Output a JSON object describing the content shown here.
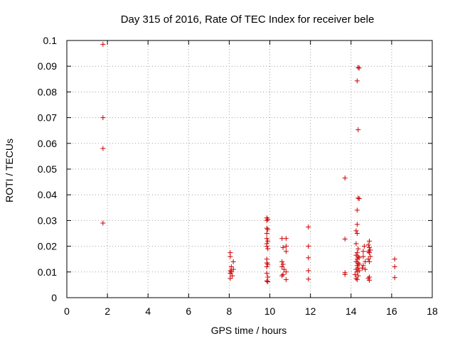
{
  "chart_data": {
    "type": "scatter",
    "title": "Day 315 of 2016, Rate Of TEC Index for receiver bele",
    "xlabel": "GPS time / hours",
    "ylabel": "ROTI / TECUs",
    "xlim": [
      0,
      18
    ],
    "ylim": [
      0,
      0.1
    ],
    "xticks": [
      0,
      2,
      4,
      6,
      8,
      10,
      12,
      14,
      16,
      18
    ],
    "yticks": [
      0,
      0.01,
      0.02,
      0.03,
      0.04,
      0.05,
      0.06,
      0.07,
      0.08,
      0.09,
      0.1
    ],
    "xtick_labels": [
      "0",
      "2",
      "4",
      "6",
      "8",
      "10",
      "12",
      "14",
      "16",
      "18"
    ],
    "ytick_labels": [
      "0",
      "0.01",
      "0.02",
      "0.03",
      "0.04",
      "0.05",
      "0.06",
      "0.07",
      "0.08",
      "0.09",
      "0.1"
    ],
    "grid": true,
    "marker": "+",
    "color": "#cc0000",
    "series": [
      {
        "name": "ROTI",
        "points": [
          [
            1.78,
            0.0985
          ],
          [
            1.78,
            0.07
          ],
          [
            1.78,
            0.058
          ],
          [
            1.78,
            0.029
          ],
          [
            8.05,
            0.0175
          ],
          [
            8.05,
            0.016
          ],
          [
            8.1,
            0.012
          ],
          [
            8.05,
            0.0105
          ],
          [
            8.1,
            0.01
          ],
          [
            8.05,
            0.0095
          ],
          [
            8.15,
            0.0085
          ],
          [
            8.05,
            0.0075
          ],
          [
            8.2,
            0.014
          ],
          [
            8.2,
            0.011
          ],
          [
            9.85,
            0.031
          ],
          [
            9.85,
            0.03
          ],
          [
            9.9,
            0.0305
          ],
          [
            9.85,
            0.027
          ],
          [
            9.9,
            0.0265
          ],
          [
            9.85,
            0.025
          ],
          [
            9.85,
            0.023
          ],
          [
            9.9,
            0.022
          ],
          [
            9.85,
            0.021
          ],
          [
            9.85,
            0.02
          ],
          [
            9.9,
            0.019
          ],
          [
            9.85,
            0.015
          ],
          [
            9.85,
            0.0135
          ],
          [
            9.9,
            0.013
          ],
          [
            9.85,
            0.012
          ],
          [
            9.85,
            0.0095
          ],
          [
            9.9,
            0.008
          ],
          [
            9.85,
            0.0065
          ],
          [
            9.9,
            0.0062
          ],
          [
            10.6,
            0.023
          ],
          [
            10.65,
            0.0195
          ],
          [
            10.6,
            0.014
          ],
          [
            10.65,
            0.013
          ],
          [
            10.6,
            0.012
          ],
          [
            10.7,
            0.011
          ],
          [
            10.65,
            0.009
          ],
          [
            10.6,
            0.0085
          ],
          [
            10.8,
            0.023
          ],
          [
            10.8,
            0.02
          ],
          [
            10.8,
            0.018
          ],
          [
            10.8,
            0.01
          ],
          [
            10.8,
            0.007
          ],
          [
            11.9,
            0.0275
          ],
          [
            11.9,
            0.02
          ],
          [
            11.9,
            0.0155
          ],
          [
            11.9,
            0.0105
          ],
          [
            11.9,
            0.0072
          ],
          [
            13.7,
            0.0465
          ],
          [
            13.7,
            0.0228
          ],
          [
            13.7,
            0.0097
          ],
          [
            13.7,
            0.009
          ],
          [
            14.35,
            0.0895
          ],
          [
            14.4,
            0.0893
          ],
          [
            14.3,
            0.0843
          ],
          [
            14.35,
            0.0653
          ],
          [
            14.35,
            0.0387
          ],
          [
            14.4,
            0.0385
          ],
          [
            14.3,
            0.034
          ],
          [
            14.3,
            0.0285
          ],
          [
            14.25,
            0.026
          ],
          [
            14.3,
            0.025
          ],
          [
            14.25,
            0.021
          ],
          [
            14.35,
            0.019
          ],
          [
            14.3,
            0.0175
          ],
          [
            14.25,
            0.0165
          ],
          [
            14.35,
            0.016
          ],
          [
            14.4,
            0.0155
          ],
          [
            14.3,
            0.015
          ],
          [
            14.25,
            0.014
          ],
          [
            14.35,
            0.0135
          ],
          [
            14.4,
            0.013
          ],
          [
            14.3,
            0.0125
          ],
          [
            14.35,
            0.0115
          ],
          [
            14.25,
            0.011
          ],
          [
            14.4,
            0.0105
          ],
          [
            14.3,
            0.01
          ],
          [
            14.2,
            0.009
          ],
          [
            14.35,
            0.0085
          ],
          [
            14.25,
            0.0075
          ],
          [
            14.3,
            0.007
          ],
          [
            14.6,
            0.018
          ],
          [
            14.65,
            0.02
          ],
          [
            14.6,
            0.016
          ],
          [
            14.7,
            0.014
          ],
          [
            14.6,
            0.0125
          ],
          [
            14.55,
            0.0115
          ],
          [
            14.7,
            0.011
          ],
          [
            14.9,
            0.022
          ],
          [
            14.85,
            0.0205
          ],
          [
            14.9,
            0.0195
          ],
          [
            14.95,
            0.0185
          ],
          [
            14.85,
            0.018
          ],
          [
            14.9,
            0.0175
          ],
          [
            14.95,
            0.016
          ],
          [
            14.85,
            0.015
          ],
          [
            14.9,
            0.014
          ],
          [
            14.9,
            0.008
          ],
          [
            14.85,
            0.0075
          ],
          [
            14.9,
            0.0068
          ],
          [
            16.15,
            0.015
          ],
          [
            16.15,
            0.012
          ],
          [
            16.15,
            0.0078
          ]
        ]
      }
    ]
  }
}
